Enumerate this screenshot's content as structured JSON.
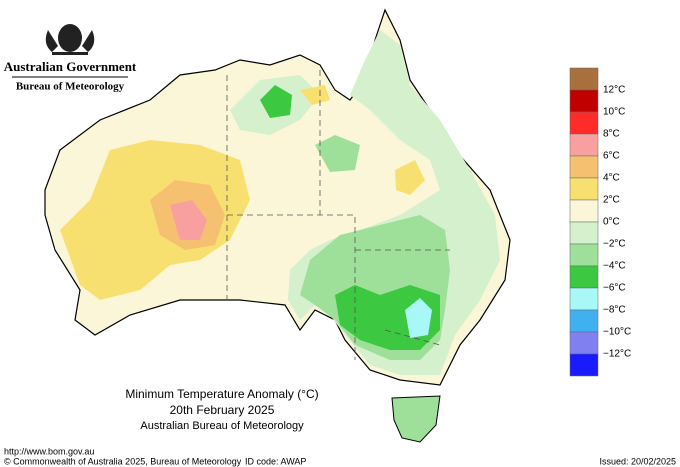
{
  "header": {
    "government": "Australian Government",
    "agency": "Bureau of Meteorology"
  },
  "title": {
    "line1": "Minimum Temperature Anomaly (°C)",
    "line2": "20th February 2025",
    "line3": "Australian Bureau of Meteorology"
  },
  "legend": {
    "labels": [
      "12°C",
      "10°C",
      "8°C",
      "6°C",
      "4°C",
      "2°C",
      "0°C",
      "−2°C",
      "−4°C",
      "−6°C",
      "−8°C",
      "−10°C",
      "−12°C"
    ],
    "colors": [
      "#a8703c",
      "#c00000",
      "#ff2a2a",
      "#f8a0a0",
      "#f5c070",
      "#f8e070",
      "#fcf6d8",
      "#d4f0cc",
      "#9ee09a",
      "#3cc840",
      "#a8f8f8",
      "#40b0f0",
      "#8080f0",
      "#1a1aff"
    ]
  },
  "footer": {
    "url": "http://www.bom.gov.au",
    "copyright": "© Commonwealth of Australia 2025, Bureau of Meteorology",
    "id_code": "ID code: AWAP",
    "issued": "Issued: 20/02/2025"
  }
}
